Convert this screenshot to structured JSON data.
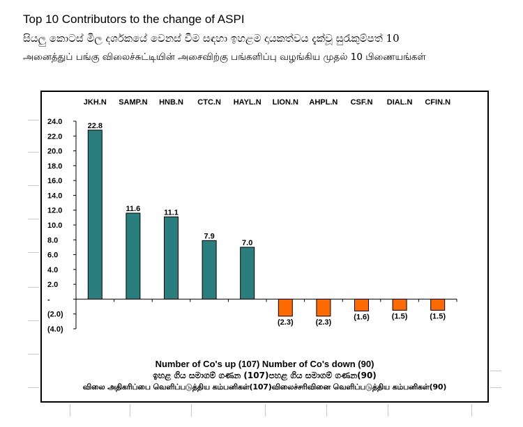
{
  "header": {
    "title": "Top 10 Contributors to the change of ASPI",
    "subtitle_sinhala": "සියලු කොටස් මිල දර්ශකයේ වෙනස් වීම සඳහා ඉහළම දායකත්වය දැක්වූ සුරැකුම්පත් 10",
    "subtitle_tamil": "அனைத்துப் பங்கு விலைச்சுட்டியின் அசைவிற்கு பங்களிப்பு வழங்கிய முதல் 10 பிணையங்கள்"
  },
  "chart_data": {
    "type": "bar",
    "categories": [
      "JKH.N",
      "SAMP.N",
      "HNB.N",
      "CTC.N",
      "HAYL.N",
      "LION.N",
      "AHPL.N",
      "CSF.N",
      "DIAL.N",
      "CFIN.N"
    ],
    "values": [
      22.8,
      11.6,
      11.1,
      7.9,
      7.0,
      -2.3,
      -2.3,
      -1.6,
      -1.5,
      -1.5
    ],
    "value_labels": [
      "22.8",
      "11.6",
      "11.1",
      "7.9",
      "7.0",
      "(2.3)",
      "(2.3)",
      "(1.6)",
      "(1.5)",
      "(1.5)"
    ],
    "yticks": [
      "24.0",
      "22.0",
      "20.0",
      "18.0",
      "16.0",
      "14.0",
      "12.0",
      "10.0",
      "8.0",
      "6.0",
      "4.0",
      "2.0",
      "-",
      "(2.0)",
      "(4.0)"
    ],
    "ylim": [
      -4,
      24
    ],
    "positive_color": "#2a7f7e",
    "negative_color": "#ff6a00",
    "category_axis_position": "top",
    "grid": false
  },
  "footer": {
    "line1": "Number of Co's up (107) Number of Co's down  (90)",
    "line2": "ඉහළ ගිය සමාගම් ගණන (107)පහළ ගිය සමාගම් ගණන(90)",
    "line3": "விலை அதிகரிப்பை வெளிப்படுத்திய கம்பனிகள்(107)விலைச்சரிவினை வெளிப்படுத்திய கம்பனிகள்(90)"
  }
}
